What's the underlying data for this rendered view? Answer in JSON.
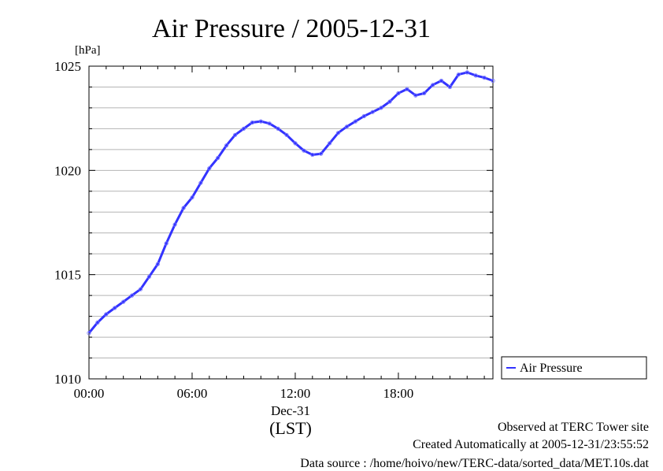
{
  "chart_data": {
    "type": "line",
    "title": "Air Pressure / 2005-12-31",
    "ylabel": "[hPa]",
    "xlabel": "(LST)",
    "x_date_label": "Dec-31",
    "ylim": [
      1010,
      1025
    ],
    "xlim": [
      0,
      23.5
    ],
    "xticks": [
      {
        "value": 0,
        "label": "00:00"
      },
      {
        "value": 6,
        "label": "06:00"
      },
      {
        "value": 12,
        "label": "12:00"
      },
      {
        "value": 18,
        "label": "18:00"
      }
    ],
    "yticks": [
      {
        "value": 1010,
        "label": "1010"
      },
      {
        "value": 1015,
        "label": "1015"
      },
      {
        "value": 1020,
        "label": "1020"
      },
      {
        "value": 1025,
        "label": "1025"
      }
    ],
    "grid": true,
    "legend": {
      "position": "right",
      "entries": [
        "Air Pressure"
      ]
    },
    "series": [
      {
        "name": "Air Pressure",
        "color": "#3333ff",
        "x": [
          0,
          0.5,
          1,
          1.5,
          2,
          2.5,
          3,
          3.5,
          4,
          4.5,
          5,
          5.5,
          6,
          6.5,
          7,
          7.5,
          8,
          8.5,
          9,
          9.5,
          10,
          10.5,
          11,
          11.5,
          12,
          12.5,
          13,
          13.5,
          14,
          14.5,
          15,
          15.5,
          16,
          16.5,
          17,
          17.5,
          18,
          18.5,
          19,
          19.5,
          20,
          20.5,
          21,
          21.5,
          22,
          22.5,
          23,
          23.5
        ],
        "y": [
          1012.2,
          1012.7,
          1013.1,
          1013.4,
          1013.7,
          1014.0,
          1014.3,
          1014.9,
          1015.5,
          1016.5,
          1017.4,
          1018.2,
          1018.7,
          1019.4,
          1020.1,
          1020.6,
          1021.2,
          1021.7,
          1022.0,
          1022.3,
          1022.35,
          1022.25,
          1022.0,
          1021.7,
          1021.3,
          1020.95,
          1020.75,
          1020.8,
          1021.3,
          1021.8,
          1022.1,
          1022.35,
          1022.6,
          1022.8,
          1023.0,
          1023.3,
          1023.7,
          1023.9,
          1023.6,
          1023.7,
          1024.1,
          1024.3,
          1024.0,
          1024.6,
          1024.7,
          1024.55,
          1024.45,
          1024.3
        ]
      }
    ]
  },
  "footer": {
    "observed": "Observed at TERC Tower site",
    "created": "Created Automatically at 2005-12-31/23:55:52",
    "source": "Data source : /home/hoivo/new/TERC-data/sorted_data/MET.10s.dat"
  }
}
